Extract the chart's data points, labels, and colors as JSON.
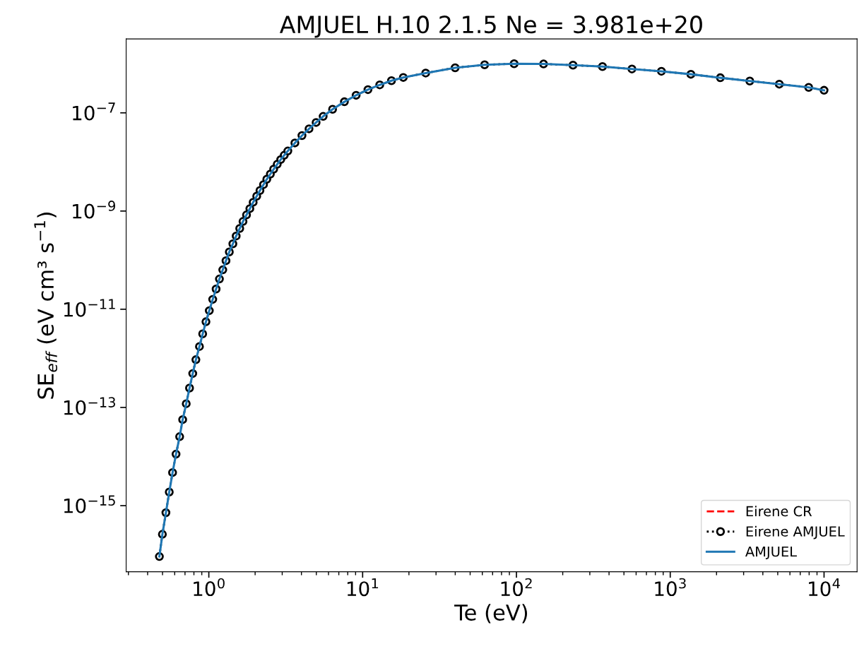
{
  "chart_data": {
    "type": "line",
    "title": "AMJUEL H.10 2.1.5 Ne = 3.981e+20",
    "xlabel": "Te (eV)",
    "ylabel": "SE$_{eff}$ (eV cm³ s$^{−1}$)",
    "log": "xy",
    "legend": "lower right",
    "grid": false,
    "xlim": [
      0.29,
      16400
    ],
    "ylim": [
      4.5e-17,
      3.2e-06
    ],
    "xticks": [
      {
        "value": 1,
        "label": "10$^{0}$"
      },
      {
        "value": 10,
        "label": "10$^{1}$"
      },
      {
        "value": 100,
        "label": "10$^{2}$"
      },
      {
        "value": 1000,
        "label": "10$^{3}$"
      },
      {
        "value": 10000,
        "label": "10$^{4}$"
      }
    ],
    "yticks": [
      {
        "value": 1e-15,
        "label": "10$^{−15}$"
      },
      {
        "value": 1e-13,
        "label": "10$^{−13}$"
      },
      {
        "value": 1e-11,
        "label": "10$^{−11}$"
      },
      {
        "value": 1e-09,
        "label": "10$^{−9}$"
      },
      {
        "value": 1e-07,
        "label": "10$^{−7}$"
      }
    ],
    "x": [
      0.477,
      0.499,
      0.526,
      0.553,
      0.581,
      0.612,
      0.646,
      0.676,
      0.713,
      0.749,
      0.786,
      0.824,
      0.869,
      0.912,
      0.958,
      1.007,
      1.06,
      1.115,
      1.172,
      1.232,
      1.293,
      1.359,
      1.433,
      1.506,
      1.588,
      1.668,
      1.758,
      1.848,
      1.942,
      2.048,
      2.15,
      2.267,
      2.382,
      2.512,
      2.64,
      2.784,
      2.935,
      3.094,
      3.263,
      3.627,
      4.032,
      4.482,
      4.983,
      5.538,
      6.377,
      7.611,
      9.073,
      10.83,
      12.92,
      15.4,
      18.38,
      25.71,
      39.95,
      62.11,
      96.6,
      150.1,
      233.2,
      362.6,
      563.5,
      876,
      1362,
      2117,
      3290,
      5116,
      7947,
      10000
    ],
    "series": [
      {
        "name": "Eirene CR",
        "color": "#ff0000",
        "line_style": "dashed",
        "marker": "none",
        "values": [
          null,
          null,
          null,
          null,
          null,
          null,
          null,
          null,
          null,
          null,
          null,
          null,
          null,
          null,
          null,
          null,
          null,
          null,
          null,
          null,
          null,
          null,
          null,
          null,
          null,
          null,
          null,
          null,
          null,
          null,
          null,
          null,
          null,
          null,
          null,
          null,
          null,
          null,
          null,
          null,
          null,
          null,
          null,
          null,
          null,
          null,
          null,
          null,
          null,
          null,
          null,
          null,
          null,
          null,
          null,
          null,
          null,
          null,
          null,
          null,
          null,
          null,
          null,
          null,
          null,
          null
        ]
      },
      {
        "name": "Eirene AMJUEL",
        "color": "#000000",
        "line_style": "dotted",
        "marker": "circle",
        "values": [
          9.2e-17,
          2.61e-16,
          7.19e-16,
          1.89e-15,
          4.72e-15,
          1.12e-14,
          2.54e-14,
          5.66e-14,
          1.19e-13,
          2.48e-13,
          4.91e-13,
          9.38e-13,
          1.74e-12,
          3.15e-12,
          5.56e-12,
          9.36e-12,
          1.59e-11,
          2.58e-11,
          4.13e-11,
          6.35e-11,
          9.75e-11,
          1.47e-10,
          2.15e-10,
          3.1e-10,
          4.42e-10,
          6.14e-10,
          8.34e-10,
          1.12e-09,
          1.51e-09,
          2.01e-09,
          2.62e-09,
          3.45e-09,
          4.45e-09,
          5.66e-09,
          7.13e-09,
          8.98e-09,
          1.12e-08,
          1.37e-08,
          1.67e-08,
          2.44e-08,
          3.44e-08,
          4.73e-08,
          6.37e-08,
          8.47e-08,
          1.18e-07,
          1.68e-07,
          2.28e-07,
          2.97e-07,
          3.71e-07,
          4.52e-07,
          5.26e-07,
          6.46e-07,
          8.28e-07,
          9.51e-07,
          1e-06,
          9.89e-07,
          9.35e-07,
          8.75e-07,
          7.82e-07,
          7.02e-07,
          6.11e-07,
          5.18e-07,
          4.45e-07,
          3.84e-07,
          3.3e-07,
          2.88e-07
        ]
      },
      {
        "name": "AMJUEL",
        "color": "#1f77b4",
        "line_style": "solid",
        "marker": "none",
        "values": [
          9.2e-17,
          2.61e-16,
          7.19e-16,
          1.89e-15,
          4.72e-15,
          1.12e-14,
          2.54e-14,
          5.66e-14,
          1.19e-13,
          2.48e-13,
          4.91e-13,
          9.38e-13,
          1.74e-12,
          3.15e-12,
          5.56e-12,
          9.36e-12,
          1.59e-11,
          2.58e-11,
          4.13e-11,
          6.35e-11,
          9.75e-11,
          1.47e-10,
          2.15e-10,
          3.1e-10,
          4.42e-10,
          6.14e-10,
          8.34e-10,
          1.12e-09,
          1.51e-09,
          2.01e-09,
          2.62e-09,
          3.45e-09,
          4.45e-09,
          5.66e-09,
          7.13e-09,
          8.98e-09,
          1.12e-08,
          1.37e-08,
          1.67e-08,
          2.44e-08,
          3.44e-08,
          4.73e-08,
          6.37e-08,
          8.47e-08,
          1.18e-07,
          1.68e-07,
          2.28e-07,
          2.97e-07,
          3.71e-07,
          4.52e-07,
          5.26e-07,
          6.46e-07,
          8.28e-07,
          9.51e-07,
          1e-06,
          9.89e-07,
          9.35e-07,
          8.75e-07,
          7.82e-07,
          7.02e-07,
          6.11e-07,
          5.18e-07,
          4.45e-07,
          3.84e-07,
          3.3e-07,
          2.88e-07
        ]
      }
    ]
  }
}
